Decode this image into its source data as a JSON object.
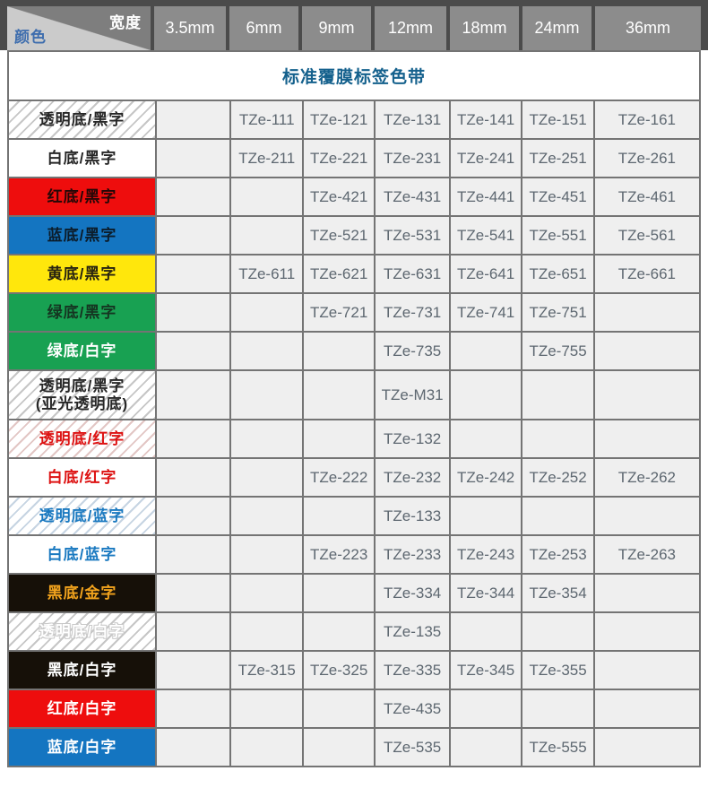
{
  "corner": {
    "width_label": "宽度",
    "color_label": "颜色"
  },
  "title": "标准覆膜标签色带",
  "widths": [
    "3.5mm",
    "6mm",
    "9mm",
    "12mm",
    "18mm",
    "24mm",
    "36mm"
  ],
  "colors": {
    "header_bg": "#8c8c8c",
    "header_dark_strip": "#4b4b4b",
    "corner_dark": "#7e7e7e",
    "corner_light": "#cbcbcb",
    "corner_color_text": "#3f6eae",
    "title_text": "#15618d",
    "grid_border": "#747474",
    "data_cell_bg": "#efefef",
    "model_text": "#5d6770",
    "red": "#ee0d0d",
    "blue": "#1475c1",
    "yellow": "#ffe70c",
    "green": "#18a152",
    "black": "#161008",
    "gold": "#f2a31d"
  },
  "rows": [
    {
      "label": "透明底/黑字",
      "style": "hatch-black",
      "cells": [
        "",
        "TZe-111",
        "TZe-121",
        "TZe-131",
        "TZe-141",
        "TZe-151",
        "TZe-161"
      ]
    },
    {
      "label": "白底/黑字",
      "style": "white-black",
      "cells": [
        "",
        "TZe-211",
        "TZe-221",
        "TZe-231",
        "TZe-241",
        "TZe-251",
        "TZe-261"
      ]
    },
    {
      "label": "红底/黑字",
      "style": "red-black",
      "cells": [
        "",
        "",
        "TZe-421",
        "TZe-431",
        "TZe-441",
        "TZe-451",
        "TZe-461"
      ]
    },
    {
      "label": "蓝底/黑字",
      "style": "blue-black",
      "cells": [
        "",
        "",
        "TZe-521",
        "TZe-531",
        "TZe-541",
        "TZe-551",
        "TZe-561"
      ]
    },
    {
      "label": "黄底/黑字",
      "style": "yellow-black",
      "cells": [
        "",
        "TZe-611",
        "TZe-621",
        "TZe-631",
        "TZe-641",
        "TZe-651",
        "TZe-661"
      ]
    },
    {
      "label": "绿底/黑字",
      "style": "green-black",
      "cells": [
        "",
        "",
        "TZe-721",
        "TZe-731",
        "TZe-741",
        "TZe-751",
        ""
      ]
    },
    {
      "label": "绿底/白字",
      "style": "green-white",
      "cells": [
        "",
        "",
        "",
        "TZe-735",
        "",
        "TZe-755",
        ""
      ]
    },
    {
      "label": "透明底/黑字",
      "label2": "(亚光透明底)",
      "style": "hatch-black",
      "cells": [
        "",
        "",
        "",
        "TZe-M31",
        "",
        "",
        ""
      ]
    },
    {
      "label": "透明底/红字",
      "style": "hatch-red",
      "cells": [
        "",
        "",
        "",
        "TZe-132",
        "",
        "",
        ""
      ]
    },
    {
      "label": "白底/红字",
      "style": "white-red",
      "cells": [
        "",
        "",
        "TZe-222",
        "TZe-232",
        "TZe-242",
        "TZe-252",
        "TZe-262"
      ]
    },
    {
      "label": "透明底/蓝字",
      "style": "hatch-blue",
      "cells": [
        "",
        "",
        "",
        "TZe-133",
        "",
        "",
        ""
      ]
    },
    {
      "label": "白底/蓝字",
      "style": "white-blue",
      "cells": [
        "",
        "",
        "TZe-223",
        "TZe-233",
        "TZe-243",
        "TZe-253",
        "TZe-263"
      ]
    },
    {
      "label": "黑底/金字",
      "style": "black-gold",
      "cells": [
        "",
        "",
        "",
        "TZe-334",
        "TZe-344",
        "TZe-354",
        ""
      ]
    },
    {
      "label": "透明底/白字",
      "style": "hatch-white",
      "cells": [
        "",
        "",
        "",
        "TZe-135",
        "",
        "",
        ""
      ]
    },
    {
      "label": "黑底/白字",
      "style": "black-white",
      "cells": [
        "",
        "TZe-315",
        "TZe-325",
        "TZe-335",
        "TZe-345",
        "TZe-355",
        ""
      ]
    },
    {
      "label": "红底/白字",
      "style": "red-white",
      "cells": [
        "",
        "",
        "",
        "TZe-435",
        "",
        "",
        ""
      ]
    },
    {
      "label": "蓝底/白字",
      "style": "blue-white",
      "cells": [
        "",
        "",
        "",
        "TZe-535",
        "",
        "TZe-555",
        ""
      ]
    }
  ]
}
